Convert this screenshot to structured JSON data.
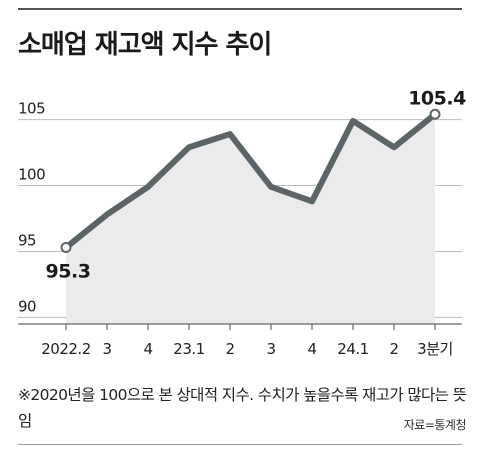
{
  "title": "소매업 재고액 지수 추이",
  "chart_data": {
    "type": "area",
    "title": "소매업 재고액 지수 추이",
    "categories": [
      "2022.2",
      "3",
      "4",
      "23.1",
      "2",
      "3",
      "4",
      "24.1",
      "2",
      "3분기"
    ],
    "series": [
      {
        "values": [
          95.3,
          97.8,
          99.9,
          102.9,
          103.9,
          99.9,
          98.8,
          104.9,
          102.9,
          105.4
        ]
      }
    ],
    "yticks": [
      90,
      95,
      100,
      105
    ],
    "ylim": [
      89.5,
      108
    ],
    "grid": true,
    "data_labels": [
      {
        "index": 0,
        "text": "95.3"
      },
      {
        "index": 9,
        "text": "105.4"
      }
    ],
    "colors": {
      "line": "#5d6468",
      "fill": "#ebebeb",
      "grid": "#bdbdbd",
      "marker_fill": "#ffffff"
    }
  },
  "note": "※2020년을 100으로 본 상대적 지수. 수치가 높을수록 재고가 많다는 뜻임",
  "source": "자료=통계청"
}
